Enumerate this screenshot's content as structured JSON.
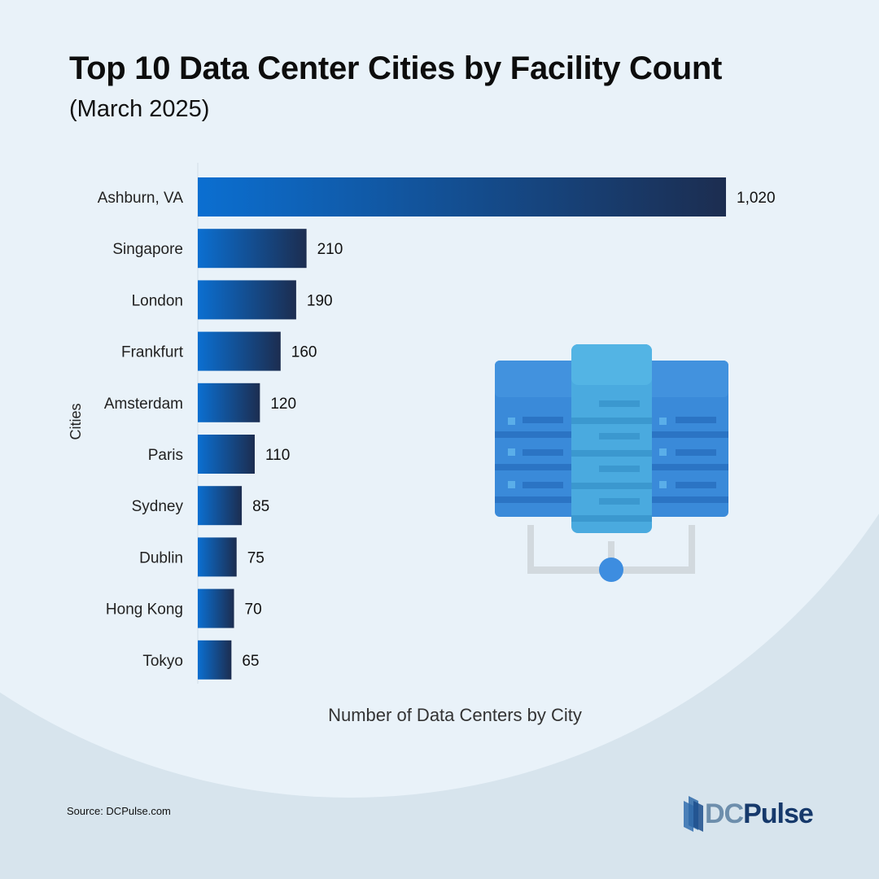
{
  "chart_data": {
    "type": "bar",
    "orientation": "horizontal",
    "title": "Top 10 Data Center Cities by Facility Count",
    "subtitle": "(March 2025)",
    "xlabel": "Number of Data Centers by City",
    "ylabel": "Cities",
    "categories": [
      "Ashburn, VA",
      "Singapore",
      "London",
      "Frankfurt",
      "Amsterdam",
      "Paris",
      "Sydney",
      "Dublin",
      "Hong Kong",
      "Tokyo"
    ],
    "values": [
      1020,
      210,
      190,
      160,
      120,
      110,
      85,
      75,
      70,
      65
    ],
    "value_labels": [
      "1,020",
      "210",
      "190",
      "160",
      "120",
      "110",
      "85",
      "75",
      "70",
      "65"
    ],
    "xlim": [
      0,
      1020
    ],
    "grid": false,
    "colors": {
      "bar_start": "#0b6fd1",
      "bar_end": "#1c2d50"
    }
  },
  "footer": {
    "source": "Source: DCPulse.com",
    "logo_part1": "DC",
    "logo_part2": "Pulse"
  },
  "illustration": {
    "icon": "server-rack-network-icon"
  }
}
